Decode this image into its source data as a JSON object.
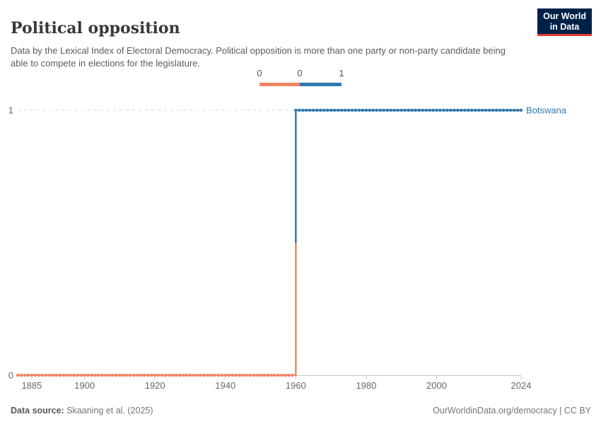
{
  "header": {
    "title": "Political opposition",
    "subtitle": "Data by the Lexical Index of Electoral Democracy. Political opposition is more than one party or non-party candidate being able to compete in elections for the legislature.",
    "logo_line1": "Our World",
    "logo_line2": "in Data"
  },
  "legend": {
    "labels": [
      "0",
      "0",
      "1"
    ]
  },
  "footer": {
    "source_label": "Data source:",
    "source_value": "Skaaning et al. (2025)",
    "link": "OurWorldinData.org/democracy | CC BY"
  },
  "colors": {
    "value_zero": "#ee8662",
    "value_one": "#3177b0",
    "logo_background": "#002147",
    "logo_underline": "#dc3e31",
    "axis_text": "#686868",
    "gridline": "#d9d9d9",
    "axis_line": "#c8c8c8"
  },
  "chart_data": {
    "type": "line",
    "title": "Political opposition",
    "entities": [
      "Botswana"
    ],
    "x_domain": [
      1881,
      2024
    ],
    "x_ticks": [
      1885,
      1900,
      1920,
      1940,
      1960,
      1980,
      2000,
      2024
    ],
    "y_ticks": [
      0,
      1
    ],
    "ylim": [
      0,
      1
    ],
    "grid": "dashed-horizontal",
    "legend_position": "top-center",
    "series": [
      {
        "name": "Botswana",
        "type": "step",
        "step_year": 1960,
        "value_before": 0,
        "value_after": 1,
        "color_before": "#ee8662",
        "color_after": "#3177b0",
        "points_note": "value 0 for every year 1881-1959, value 1 for every year 1960-2024, one dot marker per year"
      }
    ]
  }
}
